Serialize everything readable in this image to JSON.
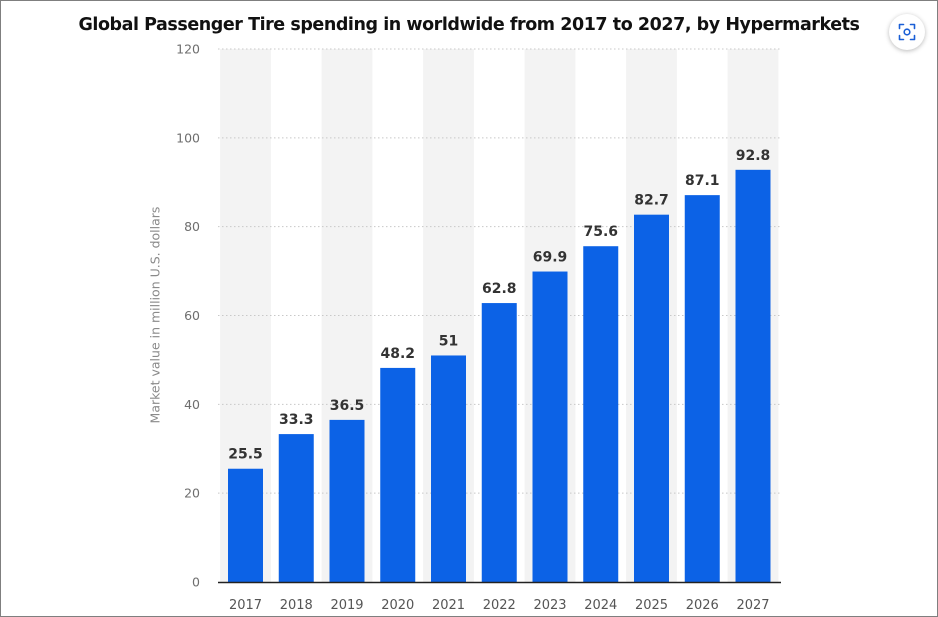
{
  "chart_data": {
    "type": "bar",
    "title": "Global Passenger Tire spending in worldwide from 2017 to 2027, by Hypermarkets",
    "ylabel": "Market value in million U.S. dollars",
    "xlabel": "",
    "categories": [
      "2017",
      "2018",
      "2019",
      "2020",
      "2021",
      "2022",
      "2023",
      "2024",
      "2025",
      "2026",
      "2027"
    ],
    "values": [
      25.5,
      33.3,
      36.5,
      48.2,
      51,
      62.8,
      69.9,
      75.6,
      82.7,
      87.1,
      92.8
    ],
    "value_labels": [
      "25.5",
      "33.3",
      "36.5",
      "48.2",
      "51",
      "62.8",
      "69.9",
      "75.6",
      "82.7",
      "87.1",
      "92.8"
    ],
    "ylim": [
      0,
      120
    ],
    "yticks": [
      "0",
      "20",
      "40",
      "60",
      "80",
      "100",
      "120"
    ],
    "grid": true,
    "bar_color": "#0c62e6",
    "stripe_color": "#f3f3f3",
    "grid_color": "#c8c8c8",
    "legend": "none"
  },
  "toolbar": {
    "corner_icon": "scan-focus-icon"
  }
}
